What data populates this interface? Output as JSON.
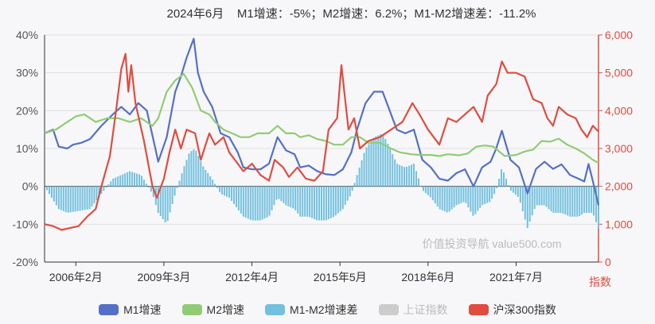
{
  "header": {
    "period": "2024年6月",
    "m1": "M1增速：-5%；",
    "m2": "M2增速：6.2%；",
    "diff": "M1-M2增速差：-11.2%"
  },
  "watermark": "价值投资导航 value500.com",
  "right_axis_label": "指数",
  "colors": {
    "m1": "#5470c6",
    "m2": "#91cc75",
    "diff": "#73c0de",
    "sh": "#cccccc",
    "hs300": "#e04c3f"
  },
  "chart_data": {
    "type": "line",
    "x_ticks": [
      "2006年2月",
      "2009年3月",
      "2012年4月",
      "2015年5月",
      "2018年6月",
      "2021年7月"
    ],
    "y_left": {
      "ticks": [
        "40%",
        "30%",
        "20%",
        "10%",
        "0%",
        "-10%",
        "-20%"
      ],
      "min": -20,
      "max": 40
    },
    "y_right": {
      "ticks": [
        "6,000",
        "5,000",
        "4,000",
        "3,000",
        "2,000",
        "1,000",
        "0"
      ],
      "min": 0,
      "max": 6000
    },
    "x_range": [
      2005.0,
      2024.5
    ],
    "series": [
      {
        "name": "M1增速",
        "axis": "left",
        "points": [
          [
            2005.0,
            14
          ],
          [
            2005.3,
            15
          ],
          [
            2005.5,
            10.5
          ],
          [
            2005.8,
            10
          ],
          [
            2006.0,
            11
          ],
          [
            2006.3,
            11.5
          ],
          [
            2006.6,
            12.5
          ],
          [
            2007.0,
            16
          ],
          [
            2007.4,
            19
          ],
          [
            2007.7,
            21
          ],
          [
            2008.0,
            19
          ],
          [
            2008.3,
            22
          ],
          [
            2008.6,
            20
          ],
          [
            2008.9,
            10
          ],
          [
            2009.0,
            6.5
          ],
          [
            2009.3,
            13
          ],
          [
            2009.6,
            25
          ],
          [
            2009.8,
            29
          ],
          [
            2010.0,
            34
          ],
          [
            2010.15,
            37
          ],
          [
            2010.25,
            39
          ],
          [
            2010.4,
            30
          ],
          [
            2010.6,
            25
          ],
          [
            2010.9,
            21
          ],
          [
            2011.2,
            14
          ],
          [
            2011.5,
            13
          ],
          [
            2011.8,
            9
          ],
          [
            2012.0,
            5
          ],
          [
            2012.3,
            4.5
          ],
          [
            2012.6,
            4.5
          ],
          [
            2012.9,
            6
          ],
          [
            2013.2,
            13
          ],
          [
            2013.5,
            9.5
          ],
          [
            2013.8,
            8.5
          ],
          [
            2014.0,
            5
          ],
          [
            2014.3,
            5.5
          ],
          [
            2014.6,
            4
          ],
          [
            2014.9,
            3.2
          ],
          [
            2015.2,
            3
          ],
          [
            2015.5,
            4.5
          ],
          [
            2015.8,
            9
          ],
          [
            2016.0,
            15
          ],
          [
            2016.3,
            22
          ],
          [
            2016.6,
            25
          ],
          [
            2016.9,
            25
          ],
          [
            2017.1,
            21
          ],
          [
            2017.4,
            15
          ],
          [
            2017.7,
            14
          ],
          [
            2018.0,
            15
          ],
          [
            2018.3,
            7
          ],
          [
            2018.6,
            5
          ],
          [
            2018.9,
            2
          ],
          [
            2019.2,
            1.5
          ],
          [
            2019.5,
            3.5
          ],
          [
            2019.8,
            4.5
          ],
          [
            2020.1,
            0
          ],
          [
            2020.4,
            5
          ],
          [
            2020.7,
            6.5
          ],
          [
            2020.9,
            10
          ],
          [
            2021.1,
            14.7
          ],
          [
            2021.4,
            7
          ],
          [
            2021.7,
            5
          ],
          [
            2022.0,
            -1.9
          ],
          [
            2022.3,
            4.6
          ],
          [
            2022.6,
            6.5
          ],
          [
            2022.9,
            4.6
          ],
          [
            2023.2,
            5.8
          ],
          [
            2023.5,
            3
          ],
          [
            2023.8,
            2
          ],
          [
            2024.0,
            1.3
          ],
          [
            2024.15,
            5.9
          ],
          [
            2024.3,
            1.4
          ],
          [
            2024.5,
            -5
          ]
        ]
      },
      {
        "name": "M2增速",
        "axis": "left",
        "points": [
          [
            2005.0,
            14
          ],
          [
            2005.4,
            15
          ],
          [
            2005.8,
            17
          ],
          [
            2006.1,
            18.5
          ],
          [
            2006.4,
            19
          ],
          [
            2006.8,
            17
          ],
          [
            2007.2,
            18
          ],
          [
            2007.6,
            18
          ],
          [
            2008.0,
            17
          ],
          [
            2008.4,
            18
          ],
          [
            2008.8,
            16
          ],
          [
            2009.0,
            18
          ],
          [
            2009.3,
            25
          ],
          [
            2009.6,
            28
          ],
          [
            2009.9,
            29.7
          ],
          [
            2010.2,
            26
          ],
          [
            2010.5,
            20
          ],
          [
            2010.8,
            19
          ],
          [
            2011.0,
            17
          ],
          [
            2011.3,
            15
          ],
          [
            2011.6,
            14
          ],
          [
            2011.9,
            13
          ],
          [
            2012.2,
            13
          ],
          [
            2012.5,
            14
          ],
          [
            2012.9,
            14
          ],
          [
            2013.2,
            16
          ],
          [
            2013.5,
            14
          ],
          [
            2013.8,
            14
          ],
          [
            2014.0,
            13
          ],
          [
            2014.3,
            13.5
          ],
          [
            2014.6,
            12.5
          ],
          [
            2014.9,
            12
          ],
          [
            2015.2,
            11
          ],
          [
            2015.5,
            11
          ],
          [
            2015.8,
            13
          ],
          [
            2016.1,
            13
          ],
          [
            2016.4,
            11.5
          ],
          [
            2016.8,
            11.5
          ],
          [
            2017.2,
            10
          ],
          [
            2017.5,
            9
          ],
          [
            2017.9,
            8.5
          ],
          [
            2018.2,
            8.3
          ],
          [
            2018.6,
            8.3
          ],
          [
            2018.9,
            8
          ],
          [
            2019.2,
            8.5
          ],
          [
            2019.6,
            8.2
          ],
          [
            2019.9,
            8.7
          ],
          [
            2020.2,
            10.5
          ],
          [
            2020.5,
            10.8
          ],
          [
            2020.8,
            10.5
          ],
          [
            2021.2,
            8
          ],
          [
            2021.6,
            8.3
          ],
          [
            2021.9,
            9.2
          ],
          [
            2022.2,
            9.7
          ],
          [
            2022.5,
            12
          ],
          [
            2022.8,
            11.8
          ],
          [
            2023.1,
            12.6
          ],
          [
            2023.4,
            11
          ],
          [
            2023.7,
            10
          ],
          [
            2024.0,
            8.7
          ],
          [
            2024.3,
            7
          ],
          [
            2024.5,
            6.2
          ]
        ]
      },
      {
        "name": "M1-M2增速差",
        "axis": "left",
        "type": "bar",
        "points": [
          [
            2005.0,
            0
          ],
          [
            2005.5,
            -6
          ],
          [
            2005.8,
            -7
          ],
          [
            2006.2,
            -6.5
          ],
          [
            2006.6,
            -6
          ],
          [
            2007.0,
            -2
          ],
          [
            2007.4,
            2
          ],
          [
            2007.7,
            3
          ],
          [
            2008.0,
            4
          ],
          [
            2008.4,
            3
          ],
          [
            2008.8,
            -2
          ],
          [
            2009.0,
            -7
          ],
          [
            2009.3,
            -10
          ],
          [
            2009.6,
            -2
          ],
          [
            2009.9,
            5
          ],
          [
            2010.1,
            9
          ],
          [
            2010.3,
            10
          ],
          [
            2010.6,
            5
          ],
          [
            2010.9,
            2
          ],
          [
            2011.2,
            -2
          ],
          [
            2011.5,
            -3
          ],
          [
            2011.8,
            -6
          ],
          [
            2012.0,
            -8
          ],
          [
            2012.3,
            -9
          ],
          [
            2012.6,
            -9
          ],
          [
            2012.9,
            -8
          ],
          [
            2013.2,
            -3
          ],
          [
            2013.5,
            -5
          ],
          [
            2013.8,
            -6
          ],
          [
            2014.0,
            -8
          ],
          [
            2014.3,
            -8
          ],
          [
            2014.6,
            -9
          ],
          [
            2014.9,
            -9
          ],
          [
            2015.2,
            -8
          ],
          [
            2015.5,
            -6
          ],
          [
            2015.8,
            -2
          ],
          [
            2016.0,
            3
          ],
          [
            2016.3,
            10
          ],
          [
            2016.6,
            13
          ],
          [
            2016.9,
            14
          ],
          [
            2017.1,
            11
          ],
          [
            2017.4,
            6
          ],
          [
            2017.7,
            5
          ],
          [
            2018.0,
            6
          ],
          [
            2018.3,
            -1
          ],
          [
            2018.6,
            -3
          ],
          [
            2018.9,
            -6
          ],
          [
            2019.2,
            -7
          ],
          [
            2019.5,
            -5
          ],
          [
            2019.8,
            -4
          ],
          [
            2020.1,
            -8
          ],
          [
            2020.4,
            -5
          ],
          [
            2020.7,
            -4
          ],
          [
            2020.9,
            -1
          ],
          [
            2021.1,
            5
          ],
          [
            2021.4,
            -1
          ],
          [
            2021.7,
            -3
          ],
          [
            2022.0,
            -11
          ],
          [
            2022.3,
            -5
          ],
          [
            2022.6,
            -5
          ],
          [
            2022.9,
            -7
          ],
          [
            2023.2,
            -7
          ],
          [
            2023.5,
            -8
          ],
          [
            2023.8,
            -8
          ],
          [
            2024.0,
            -7
          ],
          [
            2024.15,
            -7
          ],
          [
            2024.3,
            -7
          ],
          [
            2024.5,
            -11.2
          ]
        ]
      },
      {
        "name": "上证指数",
        "axis": "right",
        "hidden": true,
        "points": []
      },
      {
        "name": "沪深300指数",
        "axis": "right",
        "points": [
          [
            2005.0,
            1000
          ],
          [
            2005.3,
            950
          ],
          [
            2005.6,
            850
          ],
          [
            2005.9,
            900
          ],
          [
            2006.2,
            950
          ],
          [
            2006.5,
            1200
          ],
          [
            2006.8,
            1400
          ],
          [
            2007.0,
            2000
          ],
          [
            2007.3,
            2800
          ],
          [
            2007.5,
            3900
          ],
          [
            2007.7,
            5100
          ],
          [
            2007.85,
            5500
          ],
          [
            2007.95,
            4500
          ],
          [
            2008.05,
            5200
          ],
          [
            2008.2,
            4200
          ],
          [
            2008.5,
            3200
          ],
          [
            2008.8,
            2000
          ],
          [
            2008.95,
            1700
          ],
          [
            2009.2,
            2200
          ],
          [
            2009.4,
            2900
          ],
          [
            2009.6,
            3500
          ],
          [
            2009.8,
            3000
          ],
          [
            2010.0,
            3500
          ],
          [
            2010.3,
            3400
          ],
          [
            2010.5,
            2700
          ],
          [
            2010.8,
            3400
          ],
          [
            2011.0,
            3100
          ],
          [
            2011.3,
            3300
          ],
          [
            2011.5,
            2900
          ],
          [
            2011.8,
            2600
          ],
          [
            2012.0,
            2400
          ],
          [
            2012.3,
            2600
          ],
          [
            2012.6,
            2300
          ],
          [
            2012.9,
            2150
          ],
          [
            2013.1,
            2700
          ],
          [
            2013.4,
            2500
          ],
          [
            2013.6,
            2250
          ],
          [
            2013.9,
            2500
          ],
          [
            2014.2,
            2200
          ],
          [
            2014.5,
            2150
          ],
          [
            2014.8,
            2400
          ],
          [
            2015.0,
            3500
          ],
          [
            2015.3,
            3800
          ],
          [
            2015.45,
            5200
          ],
          [
            2015.55,
            4500
          ],
          [
            2015.7,
            3500
          ],
          [
            2015.9,
            3800
          ],
          [
            2016.1,
            3000
          ],
          [
            2016.4,
            3200
          ],
          [
            2016.8,
            3300
          ],
          [
            2017.2,
            3500
          ],
          [
            2017.6,
            3700
          ],
          [
            2017.95,
            4200
          ],
          [
            2018.2,
            3900
          ],
          [
            2018.5,
            3500
          ],
          [
            2018.9,
            3100
          ],
          [
            2019.2,
            3800
          ],
          [
            2019.5,
            3700
          ],
          [
            2019.8,
            3900
          ],
          [
            2020.1,
            4100
          ],
          [
            2020.4,
            3700
          ],
          [
            2020.6,
            4400
          ],
          [
            2020.9,
            4700
          ],
          [
            2021.1,
            5300
          ],
          [
            2021.3,
            5000
          ],
          [
            2021.6,
            5000
          ],
          [
            2021.9,
            4900
          ],
          [
            2022.2,
            4300
          ],
          [
            2022.5,
            4200
          ],
          [
            2022.7,
            3800
          ],
          [
            2022.9,
            3600
          ],
          [
            2023.1,
            4100
          ],
          [
            2023.4,
            3900
          ],
          [
            2023.7,
            3800
          ],
          [
            2023.9,
            3500
          ],
          [
            2024.1,
            3300
          ],
          [
            2024.3,
            3600
          ],
          [
            2024.5,
            3450
          ]
        ]
      }
    ],
    "grid": true,
    "legend": "bottom"
  }
}
